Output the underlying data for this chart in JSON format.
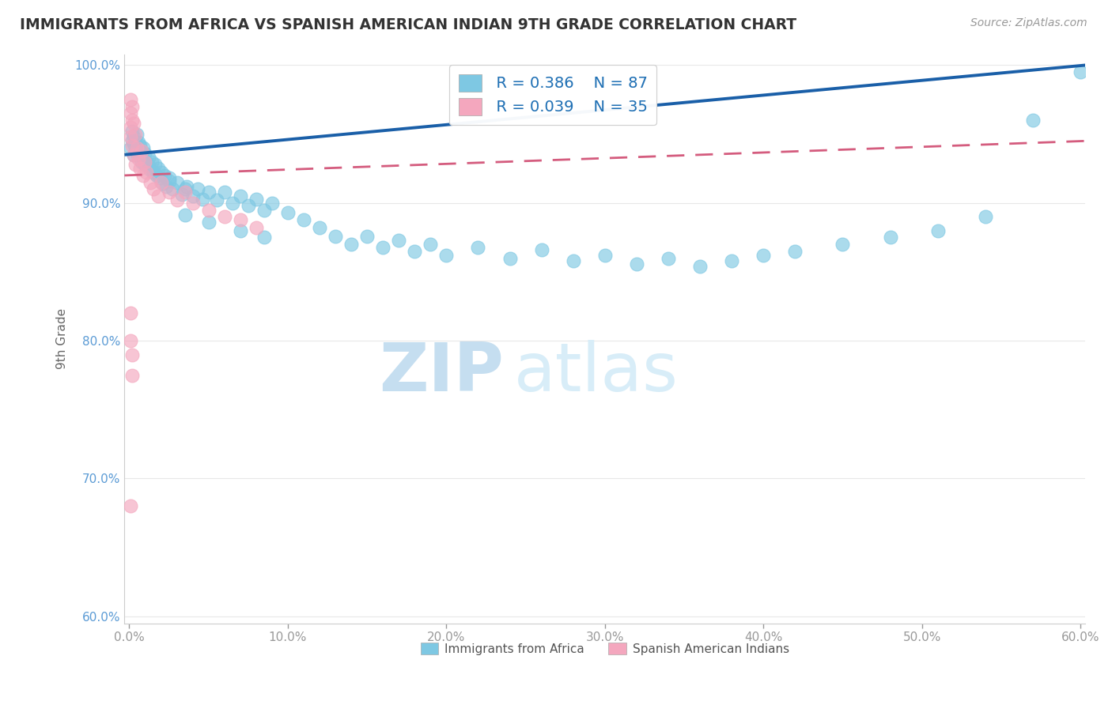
{
  "title": "IMMIGRANTS FROM AFRICA VS SPANISH AMERICAN INDIAN 9TH GRADE CORRELATION CHART",
  "source": "Source: ZipAtlas.com",
  "ylabel": "9th Grade",
  "xlim": [
    -0.003,
    0.603
  ],
  "ylim": [
    0.595,
    1.008
  ],
  "xticks": [
    0.0,
    0.1,
    0.2,
    0.3,
    0.4,
    0.5,
    0.6
  ],
  "xticklabels": [
    "0.0%",
    "10.0%",
    "20.0%",
    "30.0%",
    "40.0%",
    "50.0%",
    "60.0%"
  ],
  "yticks": [
    0.6,
    0.7,
    0.8,
    0.9,
    1.0
  ],
  "yticklabels": [
    "60.0%",
    "70.0%",
    "80.0%",
    "90.0%",
    "100.0%"
  ],
  "blue_color": "#7ec8e3",
  "pink_color": "#f4a7be",
  "blue_line_color": "#1a5fa8",
  "pink_line_color": "#d45c7e",
  "watermark_text": "ZIPatlas",
  "watermark_color": "#daeef8",
  "legend_label1": "  R = 0.386    N = 87",
  "legend_label2": "  R = 0.039    N = 35",
  "legend_label_blue": "Immigrants from Africa",
  "legend_label_pink": "Spanish American Indians",
  "blue_x": [
    0.001,
    0.002,
    0.002,
    0.003,
    0.003,
    0.003,
    0.004,
    0.004,
    0.005,
    0.005,
    0.005,
    0.006,
    0.006,
    0.007,
    0.007,
    0.008,
    0.008,
    0.009,
    0.009,
    0.01,
    0.01,
    0.011,
    0.012,
    0.012,
    0.013,
    0.014,
    0.015,
    0.016,
    0.017,
    0.018,
    0.019,
    0.02,
    0.021,
    0.022,
    0.023,
    0.025,
    0.027,
    0.03,
    0.033,
    0.036,
    0.04,
    0.043,
    0.046,
    0.05,
    0.055,
    0.06,
    0.065,
    0.07,
    0.075,
    0.08,
    0.085,
    0.09,
    0.1,
    0.11,
    0.12,
    0.13,
    0.14,
    0.15,
    0.16,
    0.17,
    0.18,
    0.19,
    0.2,
    0.22,
    0.24,
    0.26,
    0.28,
    0.3,
    0.32,
    0.34,
    0.36,
    0.38,
    0.4,
    0.42,
    0.45,
    0.48,
    0.51,
    0.54,
    0.57,
    0.6,
    0.035,
    0.05,
    0.07,
    0.085,
    0.035,
    0.025,
    0.015
  ],
  "blue_y": [
    0.94,
    0.945,
    0.952,
    0.935,
    0.943,
    0.948,
    0.938,
    0.944,
    0.936,
    0.941,
    0.95,
    0.938,
    0.944,
    0.935,
    0.942,
    0.93,
    0.938,
    0.932,
    0.94,
    0.928,
    0.936,
    0.93,
    0.927,
    0.933,
    0.924,
    0.93,
    0.922,
    0.928,
    0.92,
    0.925,
    0.918,
    0.922,
    0.914,
    0.92,
    0.912,
    0.918,
    0.91,
    0.915,
    0.906,
    0.912,
    0.905,
    0.91,
    0.903,
    0.908,
    0.902,
    0.908,
    0.9,
    0.905,
    0.898,
    0.903,
    0.895,
    0.9,
    0.893,
    0.888,
    0.882,
    0.876,
    0.87,
    0.876,
    0.868,
    0.873,
    0.865,
    0.87,
    0.862,
    0.868,
    0.86,
    0.866,
    0.858,
    0.862,
    0.856,
    0.86,
    0.854,
    0.858,
    0.862,
    0.865,
    0.87,
    0.875,
    0.88,
    0.89,
    0.96,
    0.995,
    0.891,
    0.886,
    0.88,
    0.875,
    0.91,
    0.916,
    0.922
  ],
  "pink_x": [
    0.001,
    0.001,
    0.001,
    0.001,
    0.002,
    0.002,
    0.002,
    0.003,
    0.003,
    0.004,
    0.004,
    0.005,
    0.006,
    0.007,
    0.008,
    0.009,
    0.01,
    0.011,
    0.013,
    0.015,
    0.018,
    0.02,
    0.025,
    0.03,
    0.035,
    0.04,
    0.05,
    0.06,
    0.07,
    0.08,
    0.001,
    0.001,
    0.002,
    0.002,
    0.001
  ],
  "pink_y": [
    0.975,
    0.965,
    0.955,
    0.948,
    0.96,
    0.97,
    0.942,
    0.958,
    0.935,
    0.95,
    0.928,
    0.94,
    0.932,
    0.925,
    0.938,
    0.92,
    0.93,
    0.922,
    0.915,
    0.91,
    0.905,
    0.915,
    0.908,
    0.902,
    0.908,
    0.9,
    0.895,
    0.89,
    0.888,
    0.882,
    0.82,
    0.8,
    0.79,
    0.775,
    0.68
  ]
}
